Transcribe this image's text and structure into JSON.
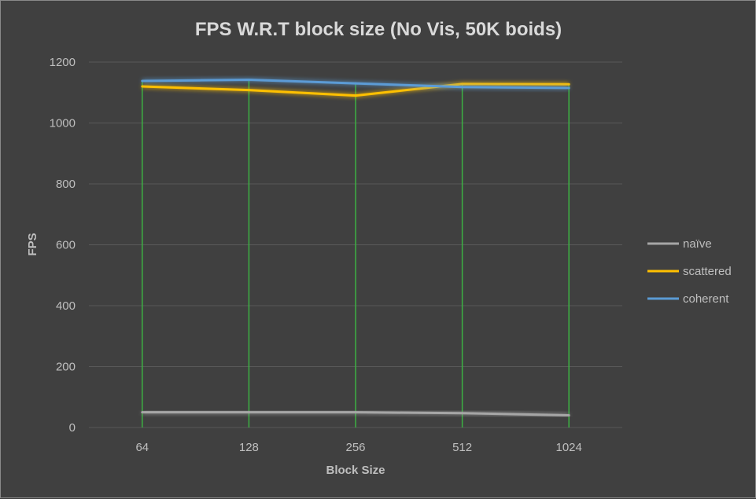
{
  "chart_data": {
    "type": "line",
    "title": "FPS W.R.T block size (No Vis, 50K boids)",
    "xlabel": "Block Size",
    "ylabel": "FPS",
    "categories": [
      "64",
      "128",
      "256",
      "512",
      "1024"
    ],
    "ylim": [
      0,
      1200
    ],
    "yticks": [
      0,
      200,
      400,
      600,
      800,
      1000,
      1200
    ],
    "grid": true,
    "legend_position": "right",
    "series": [
      {
        "name": "naïve",
        "color": "#a6a6a6",
        "values": [
          50,
          50,
          50,
          47,
          40
        ]
      },
      {
        "name": "scattered",
        "color": "#ffc000",
        "values": [
          1120,
          1108,
          1090,
          1128,
          1127
        ]
      },
      {
        "name": "coherent",
        "color": "#5b9bd5",
        "values": [
          1138,
          1142,
          1130,
          1118,
          1115
        ]
      }
    ],
    "drop_line_color": "#3cb043",
    "gridline_color": "#595959"
  }
}
